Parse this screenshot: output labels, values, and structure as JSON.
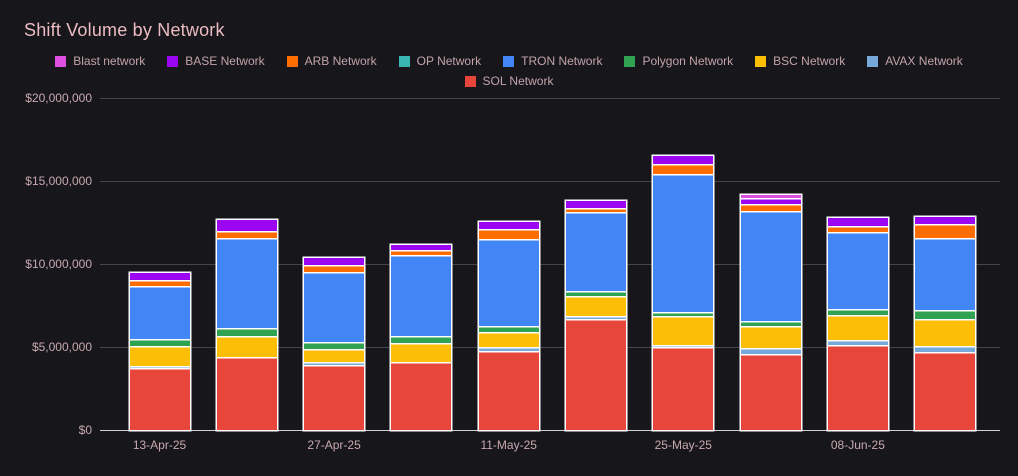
{
  "title": "Shift Volume by Network",
  "chart_data": {
    "type": "bar",
    "stacked": true,
    "title": "Shift Volume by Network",
    "xlabel": "",
    "ylabel": "",
    "ylim": [
      0,
      20000000
    ],
    "grid": true,
    "legend_position": "top-center",
    "y_ticks": [
      {
        "value": 0,
        "label": "$0"
      },
      {
        "value": 5000000,
        "label": "$5,000,000"
      },
      {
        "value": 10000000,
        "label": "$10,000,000"
      },
      {
        "value": 15000000,
        "label": "$15,000,000"
      },
      {
        "value": 20000000,
        "label": "$20,000,000"
      }
    ],
    "x_tick_labels": [
      "13-Apr-25",
      "",
      "27-Apr-25",
      "",
      "11-May-25",
      "",
      "25-May-25",
      "",
      "08-Jun-25",
      ""
    ],
    "legend_order": [
      "Blast network",
      "BASE Network",
      "ARB Network",
      "OP Network",
      "TRON Network",
      "Polygon Network",
      "BSC Network",
      "AVAX Network",
      "SOL Network"
    ],
    "series": [
      {
        "name": "SOL Network",
        "color": "#e8463a",
        "values": [
          3730000,
          4320000,
          3920000,
          4020000,
          4760000,
          6690000,
          5020000,
          4560000,
          5120000,
          4680000
        ]
      },
      {
        "name": "AVAX Network",
        "color": "#77aada",
        "values": [
          120000,
          50000,
          200000,
          50000,
          240000,
          200000,
          100000,
          400000,
          320000,
          360000
        ]
      },
      {
        "name": "BSC Network",
        "color": "#fcbe07",
        "values": [
          1200000,
          1270000,
          770000,
          1200000,
          900000,
          1200000,
          1750000,
          1300000,
          1470000,
          1650000
        ]
      },
      {
        "name": "Polygon Network",
        "color": "#30a352",
        "values": [
          420000,
          500000,
          420000,
          400000,
          360000,
          300000,
          240000,
          300000,
          360000,
          520000
        ]
      },
      {
        "name": "TRON Network",
        "color": "#4285f4",
        "values": [
          3150000,
          5420000,
          4180000,
          4850000,
          5200000,
          4700000,
          8300000,
          6600000,
          4600000,
          4350000
        ]
      },
      {
        "name": "OP Network",
        "color": "#3ab6b2",
        "values": [
          30000,
          30000,
          30000,
          30000,
          30000,
          30000,
          30000,
          30000,
          30000,
          30000
        ]
      },
      {
        "name": "ARB Network",
        "color": "#ff6d00",
        "values": [
          360000,
          420000,
          450000,
          300000,
          640000,
          260000,
          560000,
          400000,
          380000,
          800000
        ]
      },
      {
        "name": "BASE Network",
        "color": "#9c05f2",
        "values": [
          420000,
          660000,
          400000,
          300000,
          400000,
          400000,
          480000,
          400000,
          480000,
          420000
        ]
      },
      {
        "name": "Blast network",
        "color": "#de4fe0",
        "values": [
          20000,
          20000,
          20000,
          20000,
          20000,
          20000,
          20000,
          160000,
          20000,
          20000
        ]
      }
    ]
  }
}
